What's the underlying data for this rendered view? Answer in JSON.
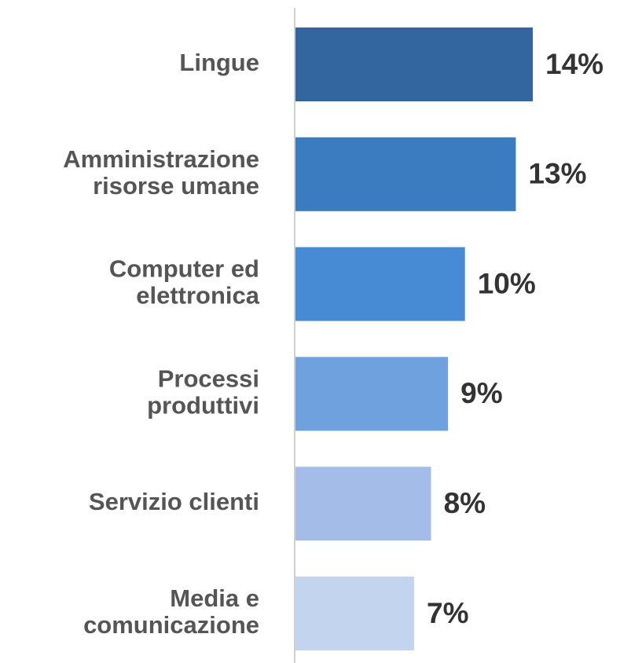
{
  "chart_data": {
    "type": "bar",
    "orientation": "horizontal",
    "categories": [
      "Lingue",
      "Amministrazione\nrisorse umane",
      "Computer ed\nelettronica",
      "Processi\nproduttivi",
      "Servizio clienti",
      "Media e\ncomunicazione"
    ],
    "values": [
      14,
      13,
      10,
      9,
      8,
      7
    ],
    "value_labels": [
      "14%",
      "13%",
      "10%",
      "9%",
      "8%",
      "7%"
    ],
    "colors": [
      "#33669e",
      "#3b7bbf",
      "#468bd3",
      "#6fa1df",
      "#a3bde8",
      "#c3d4ef"
    ]
  }
}
